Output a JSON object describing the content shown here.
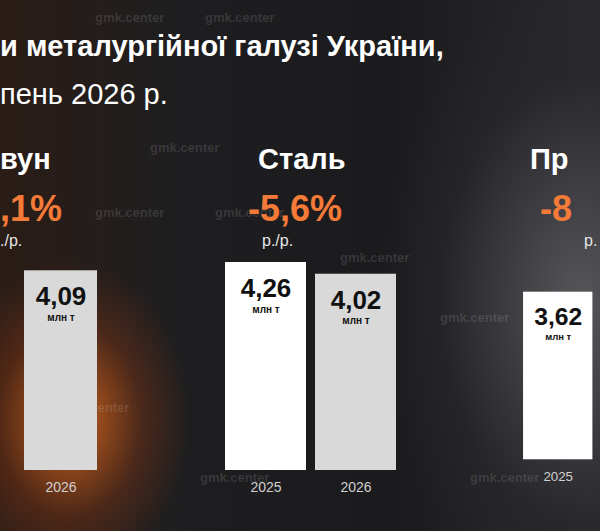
{
  "title": "и металургійної галузі України,",
  "subtitle": "пень 2026 р.",
  "watermark": "gmk.center",
  "chart_data": [
    {
      "type": "bar",
      "title": "вун",
      "subtitle": ",1%",
      "note": "./р.",
      "value_unit": "млн т",
      "categories": [
        "2026"
      ],
      "values": [
        4.09
      ],
      "value_labels": [
        "4,09"
      ],
      "colors": [
        "#d9d9d9"
      ],
      "ylim": [
        0,
        4.26
      ],
      "data_labels": true,
      "tick_labels": "x",
      "grid": false
    },
    {
      "type": "bar",
      "title": "Сталь",
      "subtitle": "-5,6%",
      "note": "р./р.",
      "value_unit": "млн т",
      "categories": [
        "2025",
        "2026"
      ],
      "values": [
        4.26,
        4.02
      ],
      "value_labels": [
        "4,26",
        "4,02"
      ],
      "colors": [
        "#ffffff",
        "#d9d9d9"
      ],
      "ylim": [
        0,
        4.26
      ],
      "data_labels": true,
      "tick_labels": "x",
      "grid": false
    },
    {
      "type": "bar",
      "title": "Пр",
      "subtitle": "-8",
      "note": "р.",
      "value_unit": "млн т",
      "categories": [
        "2025"
      ],
      "values": [
        3.62
      ],
      "value_labels": [
        "3,62"
      ],
      "colors": [
        "#ffffff"
      ],
      "ylim": [
        0,
        4.26
      ],
      "data_labels": true,
      "tick_labels": "x",
      "grid": false
    }
  ]
}
